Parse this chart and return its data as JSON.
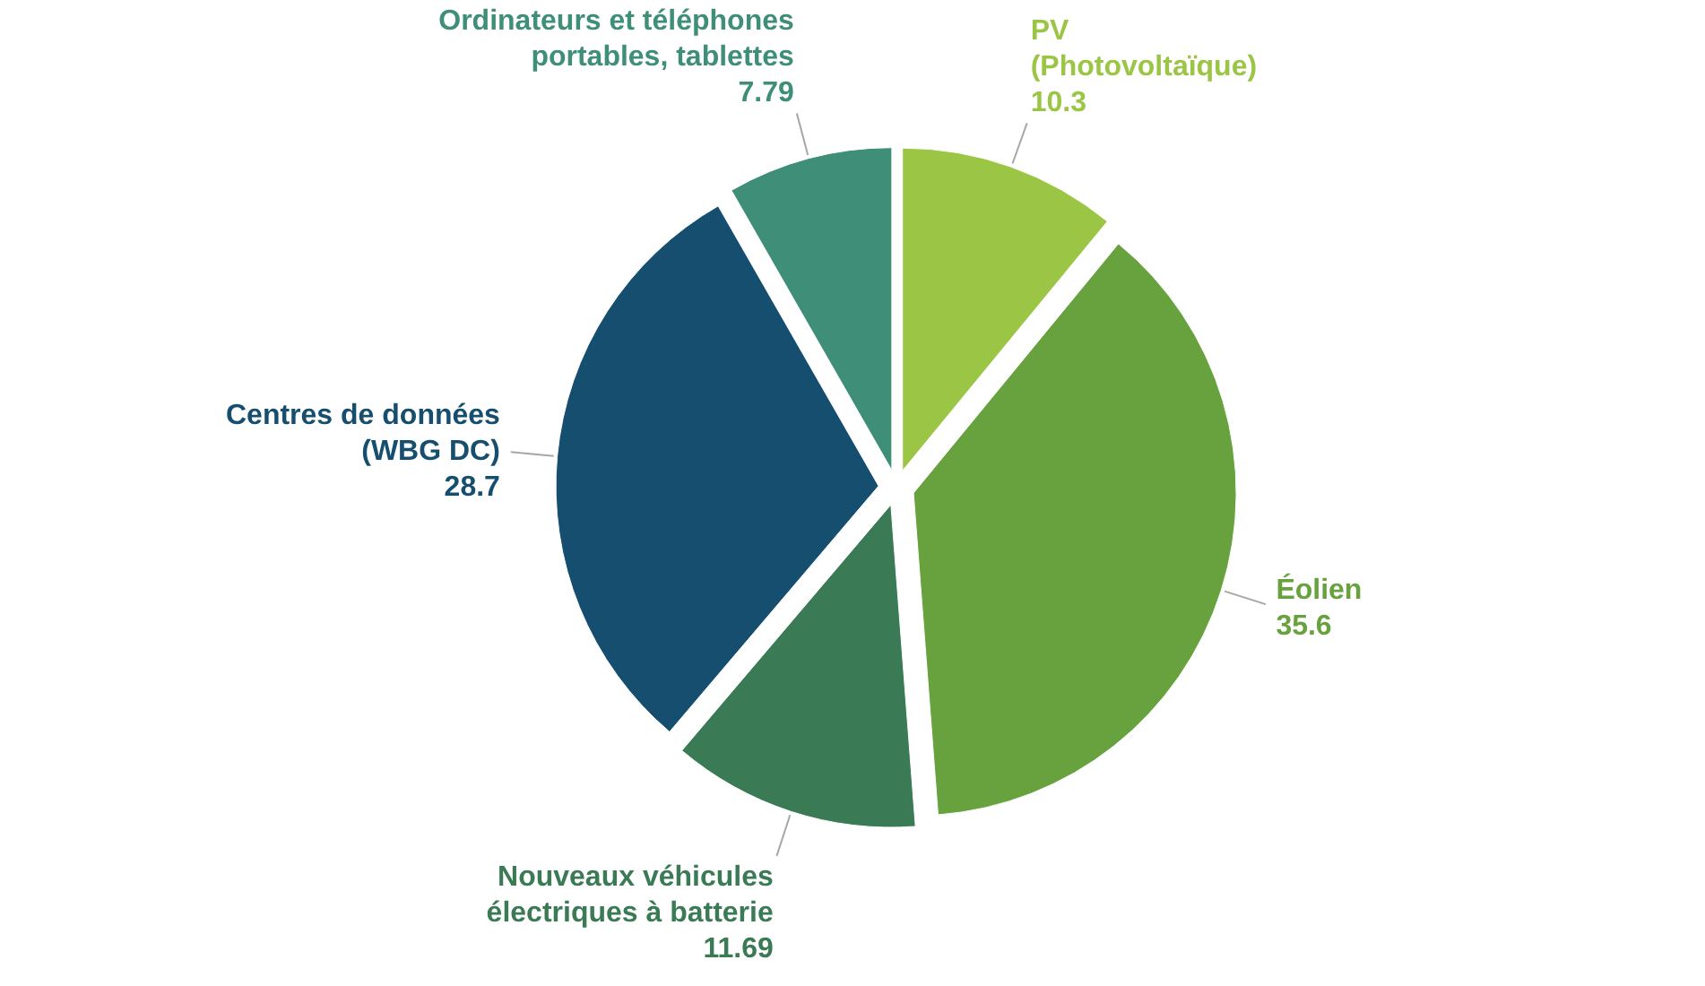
{
  "chart_data": {
    "type": "pie",
    "categories": [
      "PV\n(Photovoltaïque)",
      "Éolien",
      "Nouveaux véhicules\nélectriques à batterie",
      "Centres de données\n(WBG DC)",
      "Ordinateurs et téléphones\nportables, tablettes"
    ],
    "values": [
      10.3,
      35.6,
      11.69,
      28.7,
      7.79
    ],
    "colors": [
      "#9bc544",
      "#67a23f",
      "#3a7b55",
      "#154e6e",
      "#3f8e77"
    ],
    "data_labels": true
  }
}
